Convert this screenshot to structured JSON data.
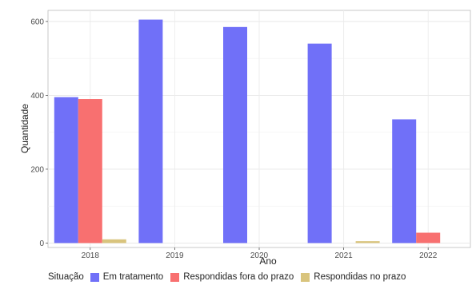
{
  "chart_data": {
    "type": "bar",
    "categories": [
      "2018",
      "2019",
      "2020",
      "2021",
      "2022"
    ],
    "series": [
      {
        "name": "Em tratamento",
        "color": "#7070f8",
        "values": [
          395,
          605,
          585,
          540,
          335
        ]
      },
      {
        "name": "Respondidas fora do prazo",
        "color": "#f87070",
        "values": [
          390,
          0,
          0,
          0,
          28
        ]
      },
      {
        "name": "Respondidas no prazo",
        "color": "#d9c47d",
        "values": [
          10,
          0,
          0,
          5,
          0
        ]
      }
    ],
    "xlabel": "Ano",
    "ylabel": "Quantidade",
    "yticks": [
      0,
      200,
      400,
      600
    ],
    "ylim": [
      -12,
      630
    ],
    "grid": true,
    "legend_title": "Situação",
    "legend_position": "bottom"
  }
}
